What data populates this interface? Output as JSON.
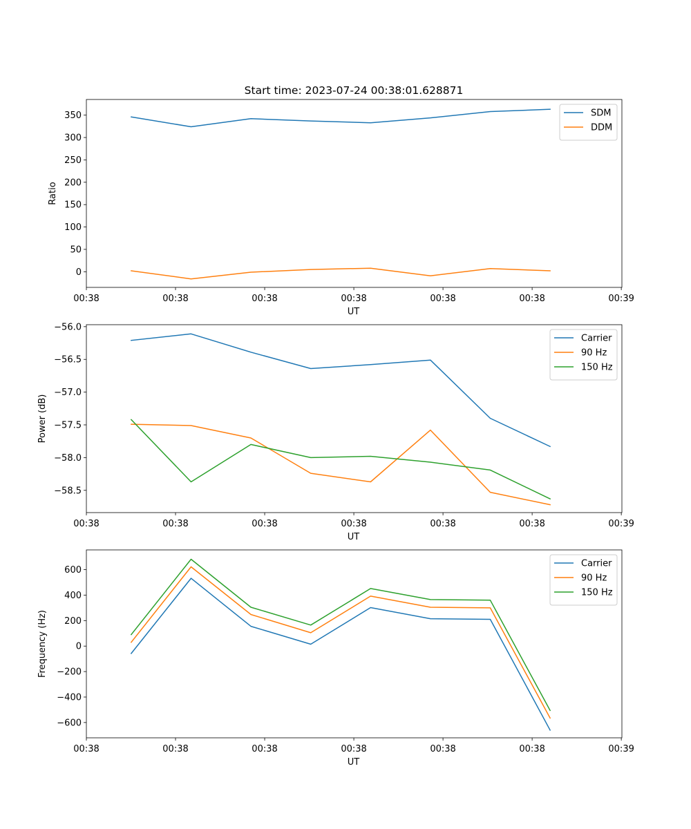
{
  "figure": {
    "title": "Start time: 2023-07-24 00:38:01.628871"
  },
  "chart_data": [
    {
      "type": "line",
      "title": "Start time: 2023-07-24 00:38:01.628871",
      "xlabel": "UT",
      "ylabel": "Ratio",
      "x": [
        0,
        1,
        2,
        3,
        4,
        5,
        6,
        7
      ],
      "xlim": [
        -0.75,
        8.2
      ],
      "x_ticks": [
        -0.75,
        0.74,
        2.23,
        3.72,
        5.21,
        6.7,
        8.19
      ],
      "x_tick_labels": [
        "00:38",
        "00:38",
        "00:38",
        "00:38",
        "00:38",
        "00:38",
        "00:39"
      ],
      "ylim": [
        -35,
        385
      ],
      "y_ticks": [
        0,
        50,
        100,
        150,
        200,
        250,
        300,
        350
      ],
      "y_tick_labels": [
        "0",
        "50",
        "100",
        "150",
        "200",
        "250",
        "300",
        "350"
      ],
      "legend_position": "top-right",
      "series": [
        {
          "name": "SDM",
          "color": "#1f77b4",
          "values": [
            346,
            324,
            342,
            337,
            333,
            344,
            358,
            363
          ]
        },
        {
          "name": "DDM",
          "color": "#ff7f0e",
          "values": [
            2,
            -16,
            -1,
            5,
            8,
            -9,
            7,
            2
          ]
        }
      ]
    },
    {
      "type": "line",
      "title": "",
      "xlabel": "UT",
      "ylabel": "Power (dB)",
      "x": [
        0,
        1,
        2,
        3,
        4,
        5,
        6,
        7
      ],
      "xlim": [
        -0.75,
        8.2
      ],
      "x_ticks": [
        -0.75,
        0.74,
        2.23,
        3.72,
        5.21,
        6.7,
        8.19
      ],
      "x_tick_labels": [
        "00:38",
        "00:38",
        "00:38",
        "00:38",
        "00:38",
        "00:38",
        "00:39"
      ],
      "ylim": [
        -58.84,
        -55.97
      ],
      "y_ticks": [
        -56.0,
        -56.5,
        -57.0,
        -57.5,
        -58.0,
        -58.5
      ],
      "y_tick_labels": [
        "−56.0",
        "−56.5",
        "−57.0",
        "−57.5",
        "−58.0",
        "−58.5"
      ],
      "legend_position": "top-right",
      "series": [
        {
          "name": "Carrier",
          "color": "#1f77b4",
          "values": [
            -56.21,
            -56.11,
            -56.39,
            -56.64,
            -56.58,
            -56.51,
            -57.4,
            -57.83
          ]
        },
        {
          "name": "90 Hz",
          "color": "#ff7f0e",
          "values": [
            -57.49,
            -57.51,
            -57.7,
            -58.24,
            -58.37,
            -57.58,
            -58.53,
            -58.72
          ]
        },
        {
          "name": "150 Hz",
          "color": "#2ca02c",
          "values": [
            -57.42,
            -58.37,
            -57.8,
            -58.0,
            -57.98,
            -58.07,
            -58.19,
            -58.63
          ]
        }
      ]
    },
    {
      "type": "line",
      "title": "",
      "xlabel": "UT",
      "ylabel": "Frequency (Hz)",
      "x": [
        0,
        1,
        2,
        3,
        4,
        5,
        6,
        7
      ],
      "xlim": [
        -0.75,
        8.2
      ],
      "x_ticks": [
        -0.75,
        0.74,
        2.23,
        3.72,
        5.21,
        6.7,
        8.19
      ],
      "x_tick_labels": [
        "00:38",
        "00:38",
        "00:38",
        "00:38",
        "00:38",
        "00:38",
        "00:39"
      ],
      "ylim": [
        -720,
        755
      ],
      "y_ticks": [
        600,
        400,
        200,
        0,
        -200,
        -400,
        -600
      ],
      "y_tick_labels": [
        "600",
        "400",
        "200",
        "0",
        "−200",
        "−400",
        "−600"
      ],
      "legend_position": "top-right",
      "series": [
        {
          "name": "Carrier",
          "color": "#1f77b4",
          "values": [
            -58,
            532,
            155,
            15,
            302,
            215,
            210,
            -660
          ]
        },
        {
          "name": "90 Hz",
          "color": "#ff7f0e",
          "values": [
            30,
            622,
            248,
            105,
            392,
            305,
            300,
            -565
          ]
        },
        {
          "name": "150 Hz",
          "color": "#2ca02c",
          "values": [
            90,
            682,
            305,
            165,
            452,
            365,
            360,
            -505
          ]
        }
      ]
    }
  ]
}
